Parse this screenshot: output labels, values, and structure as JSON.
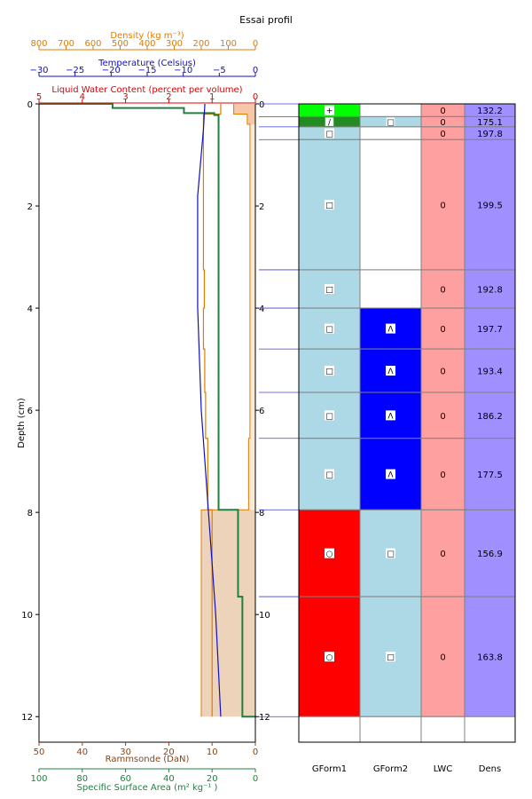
{
  "chart_data": {
    "type": "snow-profile",
    "title": "Essai profil",
    "depth_axis": {
      "label": "Depth (cm)",
      "range": [
        0,
        12.5
      ],
      "ticks": [
        0,
        2,
        4,
        6,
        8,
        10,
        12
      ],
      "inverted": true
    },
    "top_axes": [
      {
        "key": "density",
        "label": "Density (kg m⁻³)",
        "range": [
          800,
          0
        ],
        "ticks": [
          800,
          700,
          600,
          500,
          400,
          300,
          200,
          100,
          0
        ],
        "color": "#e07b00"
      },
      {
        "key": "temperature",
        "label": "Temperature (Celsius)",
        "range": [
          -30,
          0
        ],
        "ticks": [
          -30,
          -25,
          -20,
          -15,
          -10,
          -5,
          0
        ],
        "color": "#1010c0"
      },
      {
        "key": "lwc",
        "label": "Liquid Water Content (percent per volume)",
        "range": [
          5,
          0
        ],
        "ticks": [
          5,
          4,
          3,
          2,
          1,
          0
        ],
        "color": "#e00000"
      }
    ],
    "bottom_axes": [
      {
        "key": "ram",
        "label": "Rammsonde (DaN)",
        "range": [
          50,
          0
        ],
        "ticks": [
          50,
          40,
          30,
          20,
          10,
          0
        ],
        "color": "#8b4513"
      },
      {
        "key": "ssa",
        "label": "Specific Surface Area (m²  kg⁻¹ )",
        "range": [
          100,
          0
        ],
        "ticks": [
          100,
          80,
          60,
          40,
          20,
          0
        ],
        "color": "#208040"
      }
    ],
    "density_profile": [
      [
        0,
        80
      ],
      [
        0.2,
        80
      ],
      [
        0.2,
        30
      ],
      [
        0.4,
        30
      ],
      [
        0.4,
        20
      ],
      [
        6.55,
        20
      ],
      [
        6.55,
        25
      ],
      [
        7.95,
        25
      ],
      [
        7.95,
        200
      ],
      [
        12,
        200
      ]
    ],
    "ram_profile": [
      [
        0,
        8
      ],
      [
        0.2,
        8
      ],
      [
        0.2,
        12
      ],
      [
        3.25,
        12
      ],
      [
        3.25,
        11.8
      ],
      [
        4.0,
        11.8
      ],
      [
        4.0,
        12
      ],
      [
        4.8,
        12
      ],
      [
        4.8,
        11.7
      ],
      [
        5.65,
        11.7
      ],
      [
        5.65,
        11.5
      ],
      [
        6.55,
        11.5
      ],
      [
        6.55,
        11
      ],
      [
        7.95,
        11
      ],
      [
        7.95,
        10
      ],
      [
        12,
        10
      ]
    ],
    "ssa_profile": [
      [
        0,
        100
      ],
      [
        0,
        66
      ],
      [
        0.08,
        66
      ],
      [
        0.08,
        33
      ],
      [
        0.18,
        33
      ],
      [
        0.18,
        19
      ],
      [
        0.22,
        19
      ],
      [
        0.22,
        17
      ],
      [
        7.95,
        17
      ],
      [
        7.95,
        8
      ],
      [
        9.65,
        8
      ],
      [
        9.65,
        6
      ],
      [
        12,
        6
      ],
      [
        12,
        0
      ]
    ],
    "temperature_profile": [
      [
        0,
        -7
      ],
      [
        0.5,
        -7.2
      ],
      [
        1.8,
        -8
      ],
      [
        4,
        -8
      ],
      [
        6,
        -7.5
      ],
      [
        8,
        -6.5
      ],
      [
        10,
        -5.5
      ],
      [
        12,
        -4.8
      ]
    ],
    "layer_boundaries": [
      0,
      0.25,
      0.45,
      0.7,
      3.25,
      4.0,
      4.8,
      5.65,
      6.55,
      7.95,
      9.65,
      12.0
    ],
    "table": {
      "headers": [
        "GForm1",
        "GForm2",
        "LWC",
        "Dens"
      ],
      "rows": [
        {
          "gform1": "+",
          "gform1_color": "#00ff00",
          "gform2": "",
          "gform2_color": "#ffffff",
          "lwc": "0",
          "dens": "132.2"
        },
        {
          "gform1": "∕",
          "gform1_color": "#228b22",
          "gform2": "□",
          "gform2_color": "#add8e6",
          "lwc": "0",
          "dens": "175.1"
        },
        {
          "gform1": "□",
          "gform1_color": "#add8e6",
          "gform2": "",
          "gform2_color": "#ffffff",
          "lwc": "0",
          "dens": "197.8"
        },
        {
          "gform1": "□",
          "gform1_color": "#add8e6",
          "gform2": "",
          "gform2_color": "#ffffff",
          "lwc": "0",
          "dens": "199.5"
        },
        {
          "gform1": "□",
          "gform1_color": "#add8e6",
          "gform2": "",
          "gform2_color": "#ffffff",
          "lwc": "0",
          "dens": "192.8"
        },
        {
          "gform1": "□",
          "gform1_color": "#add8e6",
          "gform2": "Λ",
          "gform2_color": "#0000ff",
          "lwc": "0",
          "dens": "197.7"
        },
        {
          "gform1": "□",
          "gform1_color": "#add8e6",
          "gform2": "Λ",
          "gform2_color": "#0000ff",
          "lwc": "0",
          "dens": "193.4"
        },
        {
          "gform1": "□",
          "gform1_color": "#add8e6",
          "gform2": "Λ",
          "gform2_color": "#0000ff",
          "lwc": "0",
          "dens": "186.2"
        },
        {
          "gform1": "□",
          "gform1_color": "#add8e6",
          "gform2": "Λ",
          "gform2_color": "#0000ff",
          "lwc": "0",
          "dens": "177.5"
        },
        {
          "gform1": "○",
          "gform1_color": "#ff0000",
          "gform2": "□",
          "gform2_color": "#add8e6",
          "lwc": "0",
          "dens": "156.9"
        },
        {
          "gform1": "○",
          "gform1_color": "#ff0000",
          "gform2": "□",
          "gform2_color": "#add8e6",
          "lwc": "0",
          "dens": "163.8"
        }
      ],
      "row_spans": [
        [
          0,
          0.25
        ],
        [
          0.25,
          0.45
        ],
        [
          0.45,
          0.7
        ],
        [
          0.7,
          3.25
        ],
        [
          3.25,
          4.0
        ],
        [
          4.0,
          4.8
        ],
        [
          4.8,
          5.65
        ],
        [
          5.65,
          6.55
        ],
        [
          6.55,
          7.95
        ],
        [
          7.95,
          9.65
        ],
        [
          9.65,
          12.0
        ]
      ],
      "lwc_color": "#ffa0a0",
      "dens_color": "#a090ff"
    },
    "colors": {
      "density_fill_upper": "#fbe9d8",
      "density_fill_lower": "#eed3bb",
      "density_fill_top": "#f6c8a8",
      "density_line": "#e07b00",
      "ram_line": "#e07b00",
      "ssa_line": "#208040",
      "temperature_line": "#1010c0",
      "boundary_line": "#4040d0",
      "grid_line": "#808080"
    }
  }
}
